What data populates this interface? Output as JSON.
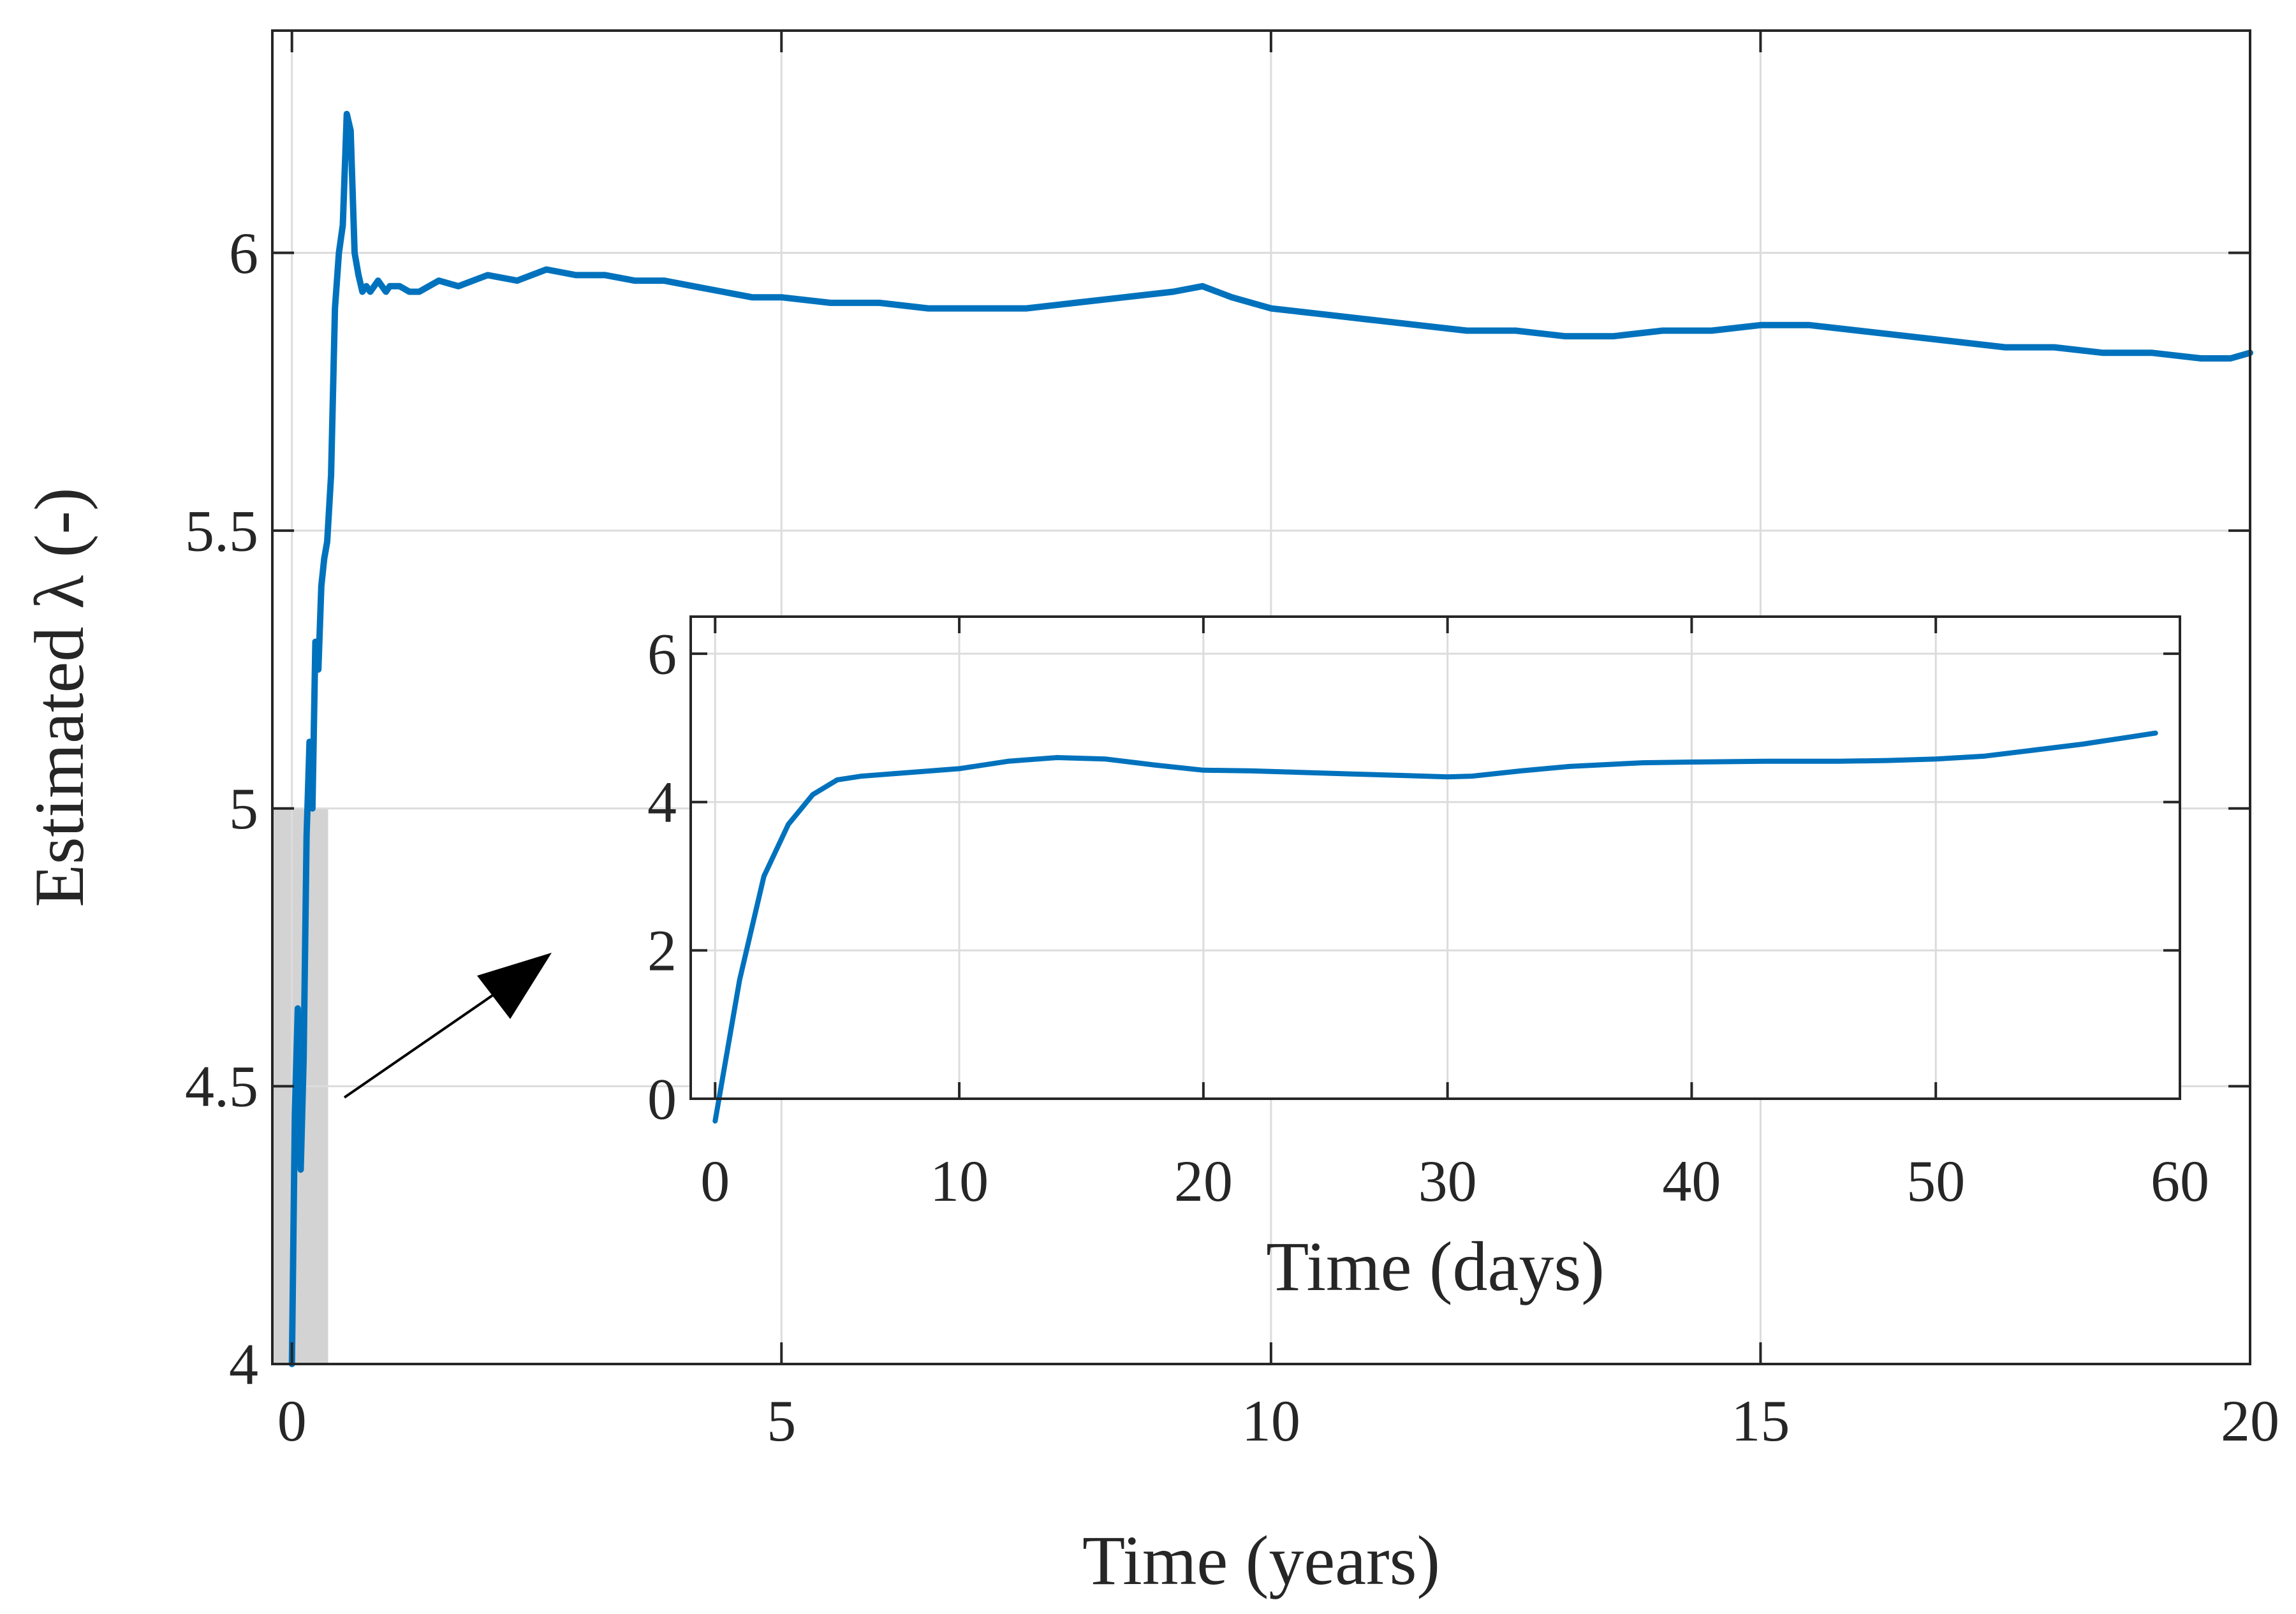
{
  "chart_data": [
    {
      "type": "line",
      "xlabel": "Time (years)",
      "ylabel": "Estimated λ (-)",
      "xlim": [
        -0.2,
        20
      ],
      "ylim": [
        4,
        6.4
      ],
      "xticks": [
        0,
        5,
        10,
        15,
        20
      ],
      "yticks": [
        4,
        4.5,
        5,
        5.5,
        6
      ],
      "xtick_labels": [
        "0",
        "5",
        "10",
        "15",
        "20"
      ],
      "ytick_labels": [
        "4",
        "4.5",
        "5",
        "5.5",
        "6"
      ],
      "grid": true,
      "color": "#0072BD",
      "highlight_region": {
        "x": [
          -0.2,
          0.37
        ],
        "y": [
          4,
          5
        ],
        "color": "#d3d3d3"
      },
      "annotation": "arrow from highlighted region to inset",
      "series": [
        {
          "x": [
            0,
            0.03,
            0.06,
            0.09,
            0.12,
            0.15,
            0.18,
            0.21,
            0.24,
            0.27,
            0.3,
            0.33,
            0.36,
            0.4,
            0.44,
            0.48,
            0.52,
            0.56,
            0.6,
            0.64,
            0.68,
            0.72,
            0.76,
            0.8,
            0.84,
            0.88,
            0.92,
            0.96,
            1.0,
            1.1,
            1.2,
            1.3,
            1.5,
            1.7,
            2.0,
            2.3,
            2.6,
            2.9,
            3.2,
            3.5,
            3.8,
            4.1,
            4.4,
            4.7,
            5.0,
            5.5,
            6.0,
            6.5,
            7.0,
            7.5,
            8.0,
            8.5,
            9.0,
            9.3,
            9.6,
            10.0,
            10.5,
            11.0,
            11.5,
            12.0,
            12.5,
            13.0,
            13.5,
            14.0,
            14.5,
            15.0,
            15.5,
            16.0,
            16.5,
            17.0,
            17.5,
            18.0,
            18.5,
            19.0,
            19.5,
            19.8,
            20.0
          ],
          "y": [
            4.0,
            4.45,
            4.64,
            4.35,
            4.55,
            4.95,
            5.12,
            5.0,
            5.3,
            5.25,
            5.4,
            5.45,
            5.48,
            5.6,
            5.9,
            6.0,
            6.05,
            6.25,
            6.22,
            6.0,
            5.96,
            5.93,
            5.94,
            5.93,
            5.94,
            5.95,
            5.94,
            5.93,
            5.94,
            5.94,
            5.93,
            5.93,
            5.95,
            5.94,
            5.96,
            5.95,
            5.97,
            5.96,
            5.96,
            5.95,
            5.95,
            5.94,
            5.93,
            5.92,
            5.92,
            5.91,
            5.91,
            5.9,
            5.9,
            5.9,
            5.91,
            5.92,
            5.93,
            5.94,
            5.92,
            5.9,
            5.89,
            5.88,
            5.87,
            5.86,
            5.86,
            5.85,
            5.85,
            5.86,
            5.86,
            5.87,
            5.87,
            5.86,
            5.85,
            5.84,
            5.83,
            5.83,
            5.82,
            5.82,
            5.81,
            5.81,
            5.82
          ]
        }
      ]
    },
    {
      "type": "line",
      "xlabel": "Time (days)",
      "ylabel": "",
      "xlim": [
        -1,
        60
      ],
      "ylim": [
        0,
        6.5
      ],
      "xticks": [
        0,
        10,
        20,
        30,
        40,
        50,
        60
      ],
      "yticks": [
        0,
        2,
        4,
        6
      ],
      "xtick_labels": [
        "0",
        "10",
        "20",
        "30",
        "40",
        "50",
        "60"
      ],
      "ytick_labels": [
        "0",
        "2",
        "4",
        "6"
      ],
      "grid": true,
      "color": "#0072BD",
      "series": [
        {
          "x": [
            0,
            1,
            2,
            3,
            4,
            5,
            6,
            8,
            10,
            12,
            14,
            16,
            18,
            20,
            22,
            24,
            26,
            28,
            30,
            31,
            33,
            35,
            38,
            40,
            43,
            46,
            48,
            50,
            52,
            54,
            56,
            58,
            59
          ],
          "y": [
            -0.3,
            1.6,
            3.0,
            3.7,
            4.1,
            4.3,
            4.35,
            4.4,
            4.45,
            4.55,
            4.6,
            4.58,
            4.5,
            4.43,
            4.42,
            4.4,
            4.38,
            4.36,
            4.34,
            4.35,
            4.42,
            4.48,
            4.53,
            4.54,
            4.55,
            4.55,
            4.56,
            4.58,
            4.62,
            4.7,
            4.78,
            4.88,
            4.93
          ]
        }
      ]
    }
  ]
}
